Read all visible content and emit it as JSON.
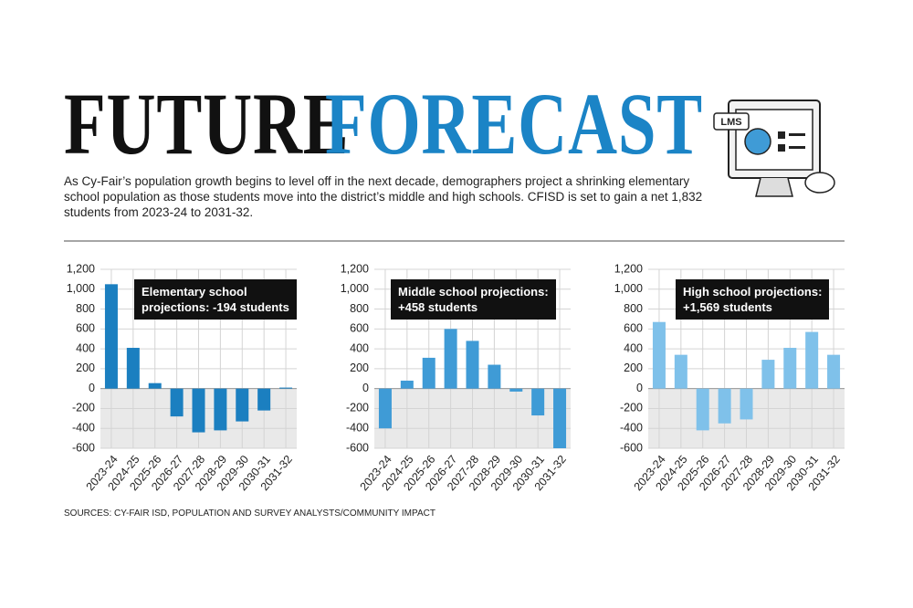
{
  "headline": [
    "FUTURE",
    "FORECAST"
  ],
  "intro": "As Cy-Fair’s population growth begins to level off in the next decade, demographers project a shrinking elementary school population as those students move into the district’s middle and high schools. CFISD is set to gain a net 1,832 students from 2023-24 to 2031-32.",
  "icon_label": "LMS",
  "source": "SOURCES: CY-FAIR ISD, POPULATION AND SURVEY ANALYSTS/COMMUNITY IMPACT",
  "chart_data": [
    {
      "type": "bar",
      "annotation": [
        "Elementary school",
        "projections: -194 students"
      ],
      "categories": [
        "2023-24",
        "2024-25",
        "2025-26",
        "2026-27",
        "2027-28",
        "2028-29",
        "2029-30",
        "2030-31",
        "2031-32"
      ],
      "values": [
        1050,
        410,
        55,
        -280,
        -440,
        -420,
        -330,
        -220,
        10
      ],
      "color": "#1b7fc0",
      "ylim": [
        -600,
        1200
      ],
      "yticks": [
        -600,
        -400,
        -200,
        0,
        200,
        400,
        600,
        800,
        {
          "value": 1000,
          "label": "1,000"
        },
        {
          "value": 1200,
          "label": "1,200"
        }
      ],
      "grid": true
    },
    {
      "type": "bar",
      "annotation": [
        "Middle school projections:",
        "+458 students"
      ],
      "categories": [
        "2023-24",
        "2024-25",
        "2025-26",
        "2026-27",
        "2027-28",
        "2028-29",
        "2029-30",
        "2030-31",
        "2031-32"
      ],
      "values": [
        -400,
        80,
        310,
        600,
        480,
        240,
        -30,
        -270,
        -600
      ],
      "color": "#3f9bd6",
      "ylim": [
        -600,
        1200
      ],
      "yticks": [
        -600,
        -400,
        -200,
        0,
        200,
        400,
        600,
        800,
        {
          "value": 1000,
          "label": "1,000"
        },
        {
          "value": 1200,
          "label": "1,200"
        }
      ],
      "grid": true
    },
    {
      "type": "bar",
      "annotation": [
        "High school projections:",
        "+1,569 students"
      ],
      "categories": [
        "2023-24",
        "2024-25",
        "2025-26",
        "2026-27",
        "2027-28",
        "2028-29",
        "2029-30",
        "2030-31",
        "2031-32"
      ],
      "values": [
        670,
        340,
        -420,
        -350,
        -310,
        290,
        410,
        570,
        340
      ],
      "color": "#7fc1ea",
      "ylim": [
        -600,
        1200
      ],
      "yticks": [
        -600,
        -400,
        -200,
        0,
        200,
        400,
        600,
        800,
        {
          "value": 1000,
          "label": "1,000"
        },
        {
          "value": 1200,
          "label": "1,200"
        }
      ],
      "grid": true
    }
  ]
}
